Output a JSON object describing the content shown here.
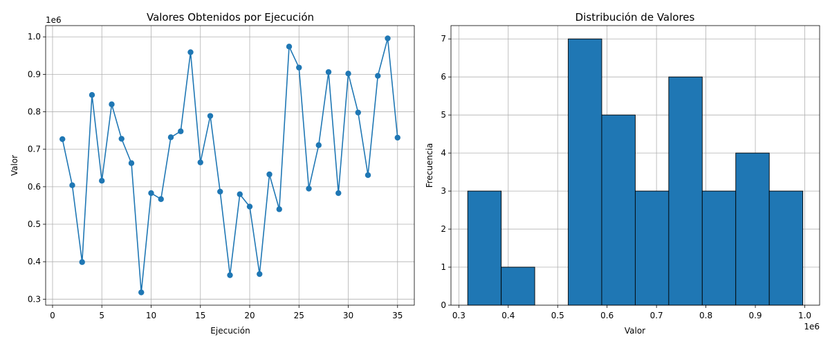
{
  "chart_data": [
    {
      "type": "line",
      "title": "Valores Obtenidos por Ejecución",
      "xlabel": "Ejecución",
      "ylabel": "Valor",
      "y_exponent_label": "1e6",
      "xlim": [
        -0.7,
        36.7
      ],
      "ylim": [
        284000,
        1030000
      ],
      "xticks": [
        0,
        5,
        10,
        15,
        20,
        25,
        30,
        35
      ],
      "yticks": [
        300000,
        400000,
        500000,
        600000,
        700000,
        800000,
        900000,
        1000000
      ],
      "ytick_labels": [
        "0.3",
        "0.4",
        "0.5",
        "0.6",
        "0.7",
        "0.8",
        "0.9",
        "1.0"
      ],
      "grid": true,
      "marker": "circle",
      "color": "#1f77b4",
      "x": [
        1,
        2,
        3,
        4,
        5,
        6,
        7,
        8,
        9,
        10,
        11,
        12,
        13,
        14,
        15,
        16,
        17,
        18,
        19,
        20,
        21,
        22,
        23,
        24,
        25,
        26,
        27,
        28,
        29,
        30,
        31,
        32,
        33,
        34,
        35
      ],
      "values": [
        727000,
        604000,
        399000,
        845000,
        616000,
        820000,
        728000,
        663000,
        318000,
        583000,
        567000,
        732000,
        748000,
        959000,
        665000,
        789000,
        587000,
        364000,
        580000,
        547000,
        367000,
        633000,
        540000,
        974000,
        918000,
        595000,
        711000,
        906000,
        583000,
        902000,
        798000,
        631000,
        896000,
        996000,
        731000
      ]
    },
    {
      "type": "bar",
      "subtype": "histogram",
      "title": "Distribución de Valores",
      "xlabel": "Valor",
      "ylabel": "Frecuencia",
      "x_exponent_label": "1e6",
      "xlim": [
        284100,
        1030100
      ],
      "ylim": [
        0,
        7.35
      ],
      "xticks": [
        300000,
        400000,
        500000,
        600000,
        700000,
        800000,
        900000,
        1000000
      ],
      "xtick_labels": [
        "0.3",
        "0.4",
        "0.5",
        "0.6",
        "0.7",
        "0.8",
        "0.9",
        "1.0"
      ],
      "yticks": [
        0,
        1,
        2,
        3,
        4,
        5,
        6,
        7
      ],
      "grid": true,
      "color": "#1f77b4",
      "edgecolor": "#000000",
      "bin_edges": [
        318000,
        385800,
        453600,
        521400,
        589200,
        657000,
        724800,
        792600,
        860400,
        928200,
        996000
      ],
      "values": [
        3,
        1,
        0,
        7,
        5,
        3,
        6,
        3,
        4,
        3
      ]
    }
  ]
}
